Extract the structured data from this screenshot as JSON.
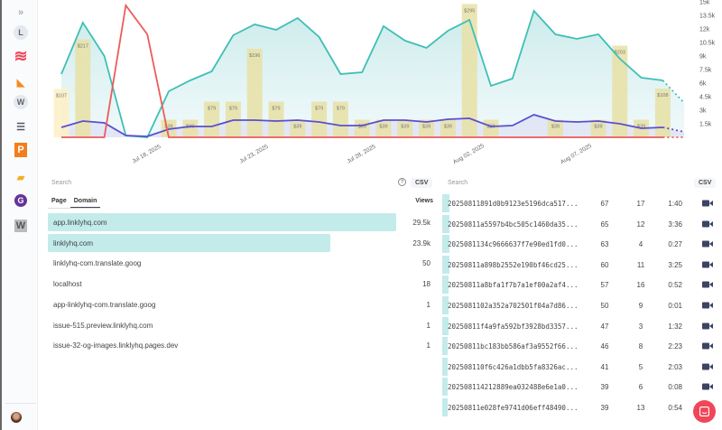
{
  "colors": {
    "views": "#3fbfb6",
    "red": "#ec5b5b",
    "purple": "#5b4fcf",
    "bar": "#e7e1a6",
    "bar_light": "#fdf0c4",
    "accent": "#c2ebea"
  },
  "sidebar": {
    "icons": [
      "expand-icon",
      "app-l-icon",
      "waves-icon",
      "kite-icon",
      "app-w-icon",
      "stack-icon",
      "p-icon",
      "folder-icon",
      "gatsby-icon",
      "w-square-icon"
    ],
    "circle_letters": {
      "app-l-icon": "L",
      "app-w-icon": "W"
    }
  },
  "chart_data": {
    "type": "line",
    "x_ticks": [
      {
        "i": 4,
        "label": "Jul 18, 2025"
      },
      {
        "i": 9,
        "label": "Jul 23, 2025"
      },
      {
        "i": 14,
        "label": "Jul 28, 2025"
      },
      {
        "i": 19,
        "label": "Aug 02, 2025"
      },
      {
        "i": 24,
        "label": "Aug 07, 2025"
      }
    ],
    "y_ticks": [
      "1.5k",
      "3k",
      "4.5k",
      "6k",
      "7.5k",
      "9k",
      "10.5k",
      "12k",
      "13.5k",
      "15k"
    ],
    "ylim": [
      0,
      15000
    ],
    "views": [
      7000,
      12700,
      9000,
      200,
      0,
      5100,
      6300,
      7300,
      11300,
      12500,
      11900,
      13200,
      11100,
      7000,
      7200,
      12300,
      10700,
      9900,
      11800,
      13000,
      5700,
      6500,
      14000,
      11400,
      10900,
      11400,
      8700,
      6600,
      6300,
      3800
    ],
    "red": [
      0,
      0,
      0,
      14600,
      11400,
      0,
      0,
      0,
      0,
      0,
      0,
      0,
      0,
      0,
      0,
      0,
      0,
      0,
      0,
      0,
      0,
      0,
      0,
      0,
      0,
      0,
      0,
      0,
      0,
      0
    ],
    "purple": [
      1100,
      1800,
      1600,
      200,
      100,
      900,
      1200,
      1200,
      1900,
      1900,
      1800,
      1900,
      1700,
      1300,
      1300,
      1900,
      1900,
      1700,
      2000,
      2100,
      1200,
      1300,
      2500,
      1800,
      1700,
      1800,
      1500,
      1000,
      1100,
      600
    ],
    "revenue_ylim": [
      0,
      300
    ],
    "revenue": [
      107,
      217,
      null,
      null,
      null,
      39,
      39,
      79,
      79,
      196,
      79,
      39,
      79,
      79,
      39,
      39,
      39,
      39,
      39,
      295,
      39,
      null,
      null,
      39,
      null,
      39,
      203,
      39,
      108,
      null
    ],
    "revenue_labels": [
      "$107",
      "$217",
      "",
      "",
      "",
      "$39",
      "$39",
      "$79",
      "$79",
      "$196",
      "$79",
      "$39",
      "$79",
      "$79",
      "$39",
      "$39",
      "$39",
      "$39",
      "$39",
      "$295",
      "$39",
      "",
      "",
      "$39",
      "",
      "$39",
      "$203",
      "$39",
      "$108",
      ""
    ]
  },
  "left_panel": {
    "search_placeholder": "Search",
    "csv": "CSV",
    "help": "?",
    "tabs": [
      "Page",
      "Domain"
    ],
    "views_header": "Views",
    "rows": [
      {
        "name": "app.linklyhq.com",
        "views": "29.5k",
        "fill": 1
      },
      {
        "name": "linklyhq.com",
        "views": "23.9k",
        "fill": 0.81
      },
      {
        "name": "linklyhq-com.translate.goog",
        "views": "50",
        "fill": 0
      },
      {
        "name": "localhost",
        "views": "18",
        "fill": 0
      },
      {
        "name": "app-linklyhq-com.translate.goog",
        "views": "1",
        "fill": 0
      },
      {
        "name": "issue-515.preview.linklyhq.com",
        "views": "1",
        "fill": 0
      },
      {
        "name": "issue-32-og-images.linklyhq.pages.dev",
        "views": "1",
        "fill": 0
      }
    ]
  },
  "right_panel": {
    "search_placeholder": "Search",
    "csv": "CSV",
    "rows": [
      {
        "id": "20250811891d0b9123e5196dca517...",
        "a": "67",
        "b": "17",
        "t": "1:40",
        "fill": 1
      },
      {
        "id": "20250811a5597b4bc505c1460da35...",
        "a": "65",
        "b": "12",
        "t": "3:36",
        "fill": 0.97
      },
      {
        "id": "2025081134c9666637f7e90ed1fd0...",
        "a": "63",
        "b": "4",
        "t": "0:27",
        "fill": 0.94
      },
      {
        "id": "20250811a898b2552e190bf46cd25...",
        "a": "60",
        "b": "11",
        "t": "3:25",
        "fill": 0.9
      },
      {
        "id": "20250811a8bfa1f7b7a1ef00a2af4...",
        "a": "57",
        "b": "16",
        "t": "0:52",
        "fill": 0.85
      },
      {
        "id": "2025081102a352a702501f04a7d86...",
        "a": "50",
        "b": "9",
        "t": "0:01",
        "fill": 0.75
      },
      {
        "id": "20250811f4a9fa592bf3928bd3357...",
        "a": "47",
        "b": "3",
        "t": "1:32",
        "fill": 0.7
      },
      {
        "id": "20250811bc183bb586af3a9552f66...",
        "a": "46",
        "b": "8",
        "t": "2:23",
        "fill": 0.69
      },
      {
        "id": "202508110f6c426a1dbb5fa8326ac...",
        "a": "41",
        "b": "5",
        "t": "2:03",
        "fill": 0.61
      },
      {
        "id": "202508114212889ea032488e6e1a0...",
        "a": "39",
        "b": "6",
        "t": "0:08",
        "fill": 0.58
      },
      {
        "id": "20250811e028fe9741d06eff48490...",
        "a": "39",
        "b": "13",
        "t": "0:54",
        "fill": 0.58
      }
    ]
  }
}
